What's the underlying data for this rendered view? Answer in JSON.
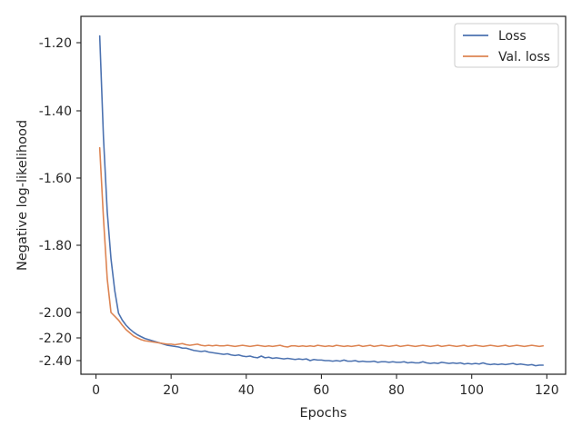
{
  "chart_data": {
    "type": "line",
    "title": "",
    "xlabel": "Epochs",
    "ylabel": "Negative log-likelihood",
    "xlim": [
      -4,
      125
    ],
    "ylim": [
      -2.485,
      -1.08
    ],
    "x_ticks": [
      0,
      20,
      40,
      60,
      80,
      100,
      120
    ],
    "x_tick_labels": [
      "0",
      "20",
      "40",
      "60",
      "80",
      "100",
      "120"
    ],
    "y_ticks": [
      -1.2,
      -1.4,
      -1.6,
      -1.8,
      -2.0,
      -2.2,
      -2.4
    ],
    "y_tick_labels": [
      "-1.20",
      "-1.40",
      "-1.60",
      "-1.80",
      "-2.00",
      "-2.20",
      "-2.40"
    ],
    "y_scale": "piecewise-linear",
    "y_scale_anchors": [
      {
        "value": -1.2,
        "tick_index": 0
      },
      {
        "value": -2.0,
        "tick_index": 4
      },
      {
        "value": -2.2,
        "tick_index": 5
      },
      {
        "value": -2.4,
        "tick_index": 6
      }
    ],
    "grid": false,
    "legend": {
      "position": "top-right"
    },
    "series": [
      {
        "name": "Loss",
        "color": "#4c72b0",
        "x": [
          1,
          2,
          3,
          4,
          5,
          6,
          7,
          8,
          9,
          10,
          11,
          12,
          13,
          14,
          15,
          16,
          17,
          18,
          19,
          20,
          21,
          22,
          23,
          24,
          25,
          26,
          27,
          28,
          29,
          30,
          31,
          32,
          33,
          34,
          35,
          36,
          37,
          38,
          39,
          40,
          41,
          42,
          43,
          44,
          45,
          46,
          47,
          48,
          49,
          50,
          51,
          52,
          53,
          54,
          55,
          56,
          57,
          58,
          59,
          60,
          61,
          62,
          63,
          64,
          65,
          66,
          67,
          68,
          69,
          70,
          71,
          72,
          73,
          74,
          75,
          76,
          77,
          78,
          79,
          80,
          81,
          82,
          83,
          84,
          85,
          86,
          87,
          88,
          89,
          90,
          91,
          92,
          93,
          94,
          95,
          96,
          97,
          98,
          99,
          100,
          101,
          102,
          103,
          104,
          105,
          106,
          107,
          108,
          109,
          110,
          111,
          112,
          113,
          114,
          115,
          116,
          117,
          118,
          119
        ],
        "y": [
          -1.18,
          -1.48,
          -1.7,
          -1.84,
          -1.935,
          -2.005,
          -2.06,
          -2.1,
          -2.13,
          -2.155,
          -2.175,
          -2.19,
          -2.205,
          -2.215,
          -2.225,
          -2.235,
          -2.245,
          -2.255,
          -2.265,
          -2.27,
          -2.275,
          -2.28,
          -2.29,
          -2.29,
          -2.3,
          -2.31,
          -2.315,
          -2.32,
          -2.315,
          -2.325,
          -2.33,
          -2.335,
          -2.34,
          -2.345,
          -2.34,
          -2.35,
          -2.355,
          -2.35,
          -2.36,
          -2.365,
          -2.36,
          -2.37,
          -2.375,
          -2.36,
          -2.375,
          -2.37,
          -2.38,
          -2.375,
          -2.38,
          -2.385,
          -2.38,
          -2.385,
          -2.39,
          -2.385,
          -2.39,
          -2.385,
          -2.4,
          -2.39,
          -2.395,
          -2.395,
          -2.4,
          -2.4,
          -2.405,
          -2.4,
          -2.405,
          -2.395,
          -2.405,
          -2.405,
          -2.4,
          -2.41,
          -2.405,
          -2.41,
          -2.41,
          -2.405,
          -2.415,
          -2.41,
          -2.41,
          -2.415,
          -2.41,
          -2.415,
          -2.415,
          -2.41,
          -2.42,
          -2.415,
          -2.42,
          -2.42,
          -2.41,
          -2.42,
          -2.425,
          -2.42,
          -2.425,
          -2.415,
          -2.42,
          -2.425,
          -2.42,
          -2.425,
          -2.42,
          -2.43,
          -2.425,
          -2.43,
          -2.425,
          -2.43,
          -2.42,
          -2.43,
          -2.435,
          -2.43,
          -2.435,
          -2.43,
          -2.435,
          -2.43,
          -2.425,
          -2.435,
          -2.43,
          -2.435,
          -2.44,
          -2.435,
          -2.445,
          -2.44,
          -2.44
        ]
      },
      {
        "name": "Val. loss",
        "color": "#dd8452",
        "x": [
          1,
          2,
          3,
          4,
          5,
          6,
          7,
          8,
          9,
          10,
          11,
          12,
          13,
          14,
          15,
          16,
          17,
          18,
          19,
          20,
          21,
          22,
          23,
          24,
          25,
          26,
          27,
          28,
          29,
          30,
          31,
          32,
          33,
          34,
          35,
          36,
          37,
          38,
          39,
          40,
          41,
          42,
          43,
          44,
          45,
          46,
          47,
          48,
          49,
          50,
          51,
          52,
          53,
          54,
          55,
          56,
          57,
          58,
          59,
          60,
          61,
          62,
          63,
          64,
          65,
          66,
          67,
          68,
          69,
          70,
          71,
          72,
          73,
          74,
          75,
          76,
          77,
          78,
          79,
          80,
          81,
          82,
          83,
          84,
          85,
          86,
          87,
          88,
          89,
          90,
          91,
          92,
          93,
          94,
          95,
          96,
          97,
          98,
          99,
          100,
          101,
          102,
          103,
          104,
          105,
          106,
          107,
          108,
          109,
          110,
          111,
          112,
          113,
          114,
          115,
          116,
          117,
          118,
          119
        ],
        "y": [
          -1.51,
          -1.72,
          -1.9,
          -2.0,
          -2.03,
          -2.06,
          -2.1,
          -2.135,
          -2.16,
          -2.185,
          -2.2,
          -2.215,
          -2.225,
          -2.23,
          -2.235,
          -2.24,
          -2.245,
          -2.25,
          -2.255,
          -2.255,
          -2.26,
          -2.255,
          -2.25,
          -2.26,
          -2.265,
          -2.26,
          -2.255,
          -2.265,
          -2.27,
          -2.265,
          -2.27,
          -2.265,
          -2.27,
          -2.27,
          -2.265,
          -2.27,
          -2.275,
          -2.27,
          -2.265,
          -2.27,
          -2.275,
          -2.27,
          -2.265,
          -2.27,
          -2.275,
          -2.27,
          -2.275,
          -2.27,
          -2.265,
          -2.275,
          -2.28,
          -2.27,
          -2.27,
          -2.275,
          -2.27,
          -2.275,
          -2.27,
          -2.275,
          -2.265,
          -2.27,
          -2.275,
          -2.27,
          -2.275,
          -2.265,
          -2.27,
          -2.275,
          -2.27,
          -2.275,
          -2.27,
          -2.265,
          -2.275,
          -2.27,
          -2.265,
          -2.275,
          -2.27,
          -2.265,
          -2.27,
          -2.275,
          -2.27,
          -2.265,
          -2.275,
          -2.27,
          -2.265,
          -2.27,
          -2.275,
          -2.27,
          -2.265,
          -2.27,
          -2.275,
          -2.27,
          -2.265,
          -2.275,
          -2.27,
          -2.265,
          -2.27,
          -2.275,
          -2.27,
          -2.265,
          -2.275,
          -2.27,
          -2.265,
          -2.27,
          -2.275,
          -2.27,
          -2.265,
          -2.27,
          -2.275,
          -2.27,
          -2.265,
          -2.275,
          -2.27,
          -2.265,
          -2.27,
          -2.275,
          -2.27,
          -2.265,
          -2.27,
          -2.275,
          -2.27
        ]
      }
    ]
  }
}
